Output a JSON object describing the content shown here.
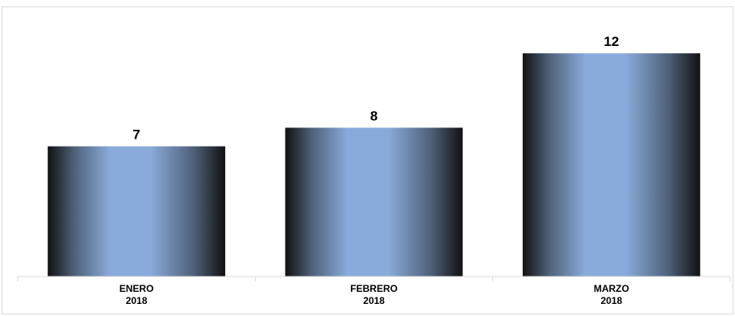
{
  "chart_data": {
    "type": "bar",
    "categories": [
      [
        "ENERO",
        "2018"
      ],
      [
        "FEBRERO",
        "2018"
      ],
      [
        "MARZO",
        "2018"
      ]
    ],
    "values": [
      7,
      8,
      12
    ],
    "data_labels": [
      "7",
      "8",
      "12"
    ],
    "title": "",
    "xlabel": "",
    "ylabel": "",
    "ylim": [
      0,
      14
    ],
    "grid": false,
    "legend": "none",
    "bar_colors": {
      "edge": "#111111",
      "mid": "#4f6179",
      "center": "#8aaadb"
    },
    "axis_color": "#d9d9d9"
  }
}
